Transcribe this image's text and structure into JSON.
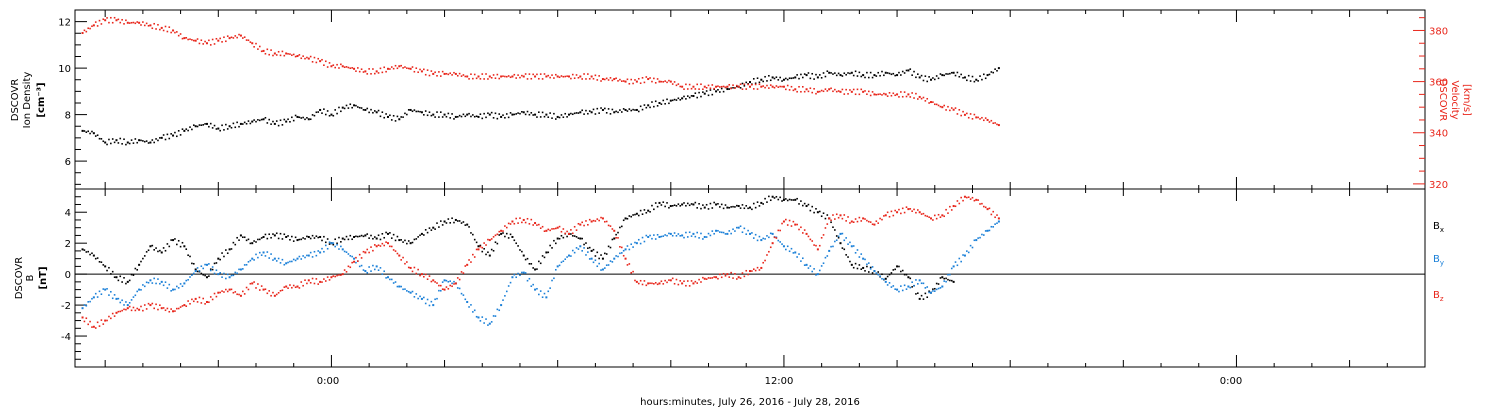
{
  "figure": {
    "xlabel": "hours:minutes, July 26, 2016 - July 28, 2016",
    "x_tick_labels": [
      "0:00",
      "12:00",
      "0:00"
    ]
  },
  "colors": {
    "black": "#000000",
    "red": "#e8261b",
    "blue": "#1b80d8",
    "zero_line": "#000000"
  },
  "chart_data": [
    {
      "type": "scatter",
      "panel": "density_velocity",
      "x_units": "hours since 2016-07-26 00:00",
      "xlim": [
        -6.8,
        29.0
      ],
      "ylim": [
        4.8,
        12.5
      ],
      "y2lim": [
        318,
        388
      ],
      "grid": false,
      "ylabel": [
        "DSCOVR",
        "Ion Density",
        "[cm⁻³]"
      ],
      "y_ticks": [
        6,
        8,
        10,
        12
      ],
      "y2label": [
        "DSCOVR",
        "Velocity",
        "[km/s]"
      ],
      "y2_ticks": [
        320,
        340,
        360,
        380
      ],
      "series": [
        {
          "color": "#000000",
          "axis": "left",
          "x": [
            -6.6,
            -6.3,
            -6.0,
            -5.7,
            -5.4,
            -5.1,
            -4.8,
            -4.5,
            -4.2,
            -3.9,
            -3.6,
            -3.3,
            -3.0,
            -2.7,
            -2.4,
            -2.1,
            -1.8,
            -1.5,
            -1.2,
            -0.9,
            -0.6,
            -0.3,
            0.0,
            0.3,
            0.6,
            0.9,
            1.2,
            1.5,
            1.8,
            2.1,
            2.4,
            2.7,
            3.0,
            3.3,
            3.6,
            3.9,
            4.2,
            4.5,
            4.8,
            5.1,
            5.4,
            5.7,
            6.0,
            6.3,
            6.6,
            6.9,
            7.2,
            7.5,
            7.8,
            8.1,
            8.4,
            8.7,
            9.0,
            9.3,
            9.6,
            9.9,
            10.2,
            10.5,
            10.8,
            11.1,
            11.4,
            11.7,
            12.0,
            12.3,
            12.6,
            12.9,
            13.2,
            13.5,
            13.8,
            14.1,
            14.4,
            14.7,
            15.0,
            15.3,
            15.6,
            15.9,
            16.2,
            16.5,
            16.8,
            17.1,
            17.4,
            17.7
          ],
          "y": [
            7.3,
            7.2,
            6.8,
            6.9,
            6.8,
            6.9,
            6.8,
            7.0,
            7.1,
            7.3,
            7.5,
            7.6,
            7.4,
            7.5,
            7.6,
            7.7,
            7.8,
            7.6,
            7.7,
            7.9,
            7.8,
            8.2,
            8.0,
            8.3,
            8.4,
            8.2,
            8.1,
            7.9,
            7.8,
            8.2,
            8.1,
            8.0,
            8.0,
            7.9,
            8.0,
            7.9,
            8.0,
            7.9,
            8.0,
            8.1,
            8.0,
            8.0,
            7.9,
            8.0,
            8.1,
            8.1,
            8.2,
            8.1,
            8.2,
            8.2,
            8.4,
            8.5,
            8.6,
            8.7,
            8.8,
            8.9,
            9.0,
            9.1,
            9.2,
            9.4,
            9.5,
            9.6,
            9.5,
            9.6,
            9.7,
            9.6,
            9.8,
            9.7,
            9.8,
            9.7,
            9.7,
            9.8,
            9.7,
            9.9,
            9.6,
            9.5,
            9.7,
            9.8,
            9.6,
            9.5,
            9.7,
            10.0
          ]
        },
        {
          "color": "#e8261b",
          "axis": "right",
          "x": [
            -6.6,
            -6.3,
            -6.0,
            -5.7,
            -5.4,
            -5.1,
            -4.8,
            -4.5,
            -4.2,
            -3.9,
            -3.6,
            -3.3,
            -3.0,
            -2.7,
            -2.4,
            -2.1,
            -1.8,
            -1.5,
            -1.2,
            -0.9,
            -0.6,
            -0.3,
            0.0,
            0.3,
            0.6,
            0.9,
            1.2,
            1.5,
            1.8,
            2.1,
            2.4,
            2.7,
            3.0,
            3.3,
            3.6,
            3.9,
            4.2,
            4.5,
            4.8,
            5.1,
            5.4,
            5.7,
            6.0,
            6.3,
            6.6,
            6.9,
            7.2,
            7.5,
            7.8,
            8.1,
            8.4,
            8.7,
            9.0,
            9.3,
            9.6,
            9.9,
            10.2,
            10.5,
            10.8,
            11.1,
            11.4,
            11.7,
            12.0,
            12.3,
            12.6,
            12.9,
            13.2,
            13.5,
            13.8,
            14.1,
            14.4,
            14.7,
            15.0,
            15.3,
            15.6,
            15.9,
            16.2,
            16.5,
            16.8,
            17.1,
            17.4,
            17.7
          ],
          "y": [
            379,
            382,
            384,
            384,
            383,
            383,
            382,
            381,
            380,
            377,
            376,
            375,
            376,
            377,
            378,
            375,
            372,
            371,
            371,
            370,
            369,
            368,
            366,
            366,
            365,
            364,
            364,
            365,
            366,
            365,
            364,
            363,
            363,
            363,
            362,
            362,
            362,
            362,
            362,
            362,
            362,
            362,
            362,
            362,
            362,
            362,
            361,
            361,
            360,
            360,
            361,
            360,
            360,
            358,
            358,
            358,
            358,
            358,
            358,
            358,
            358,
            358,
            358,
            357,
            357,
            356,
            357,
            356,
            356,
            356,
            355,
            355,
            355,
            355,
            354,
            352,
            350,
            349,
            347,
            346,
            345,
            343
          ]
        }
      ]
    },
    {
      "type": "scatter",
      "panel": "magnetic_field",
      "x_units": "hours since 2016-07-26 00:00",
      "xlim": [
        -6.8,
        29.0
      ],
      "ylim": [
        -6.0,
        5.5
      ],
      "grid": false,
      "zero_line": true,
      "ylabel": [
        "DSCOVR",
        "B",
        "[nT]"
      ],
      "y_ticks": [
        -4,
        -2,
        0,
        2,
        4
      ],
      "legend_position": "right",
      "series": [
        {
          "name": "Bx",
          "color": "#000000",
          "x": [
            -6.6,
            -6.3,
            -6.0,
            -5.7,
            -5.4,
            -5.1,
            -4.8,
            -4.5,
            -4.2,
            -3.9,
            -3.6,
            -3.3,
            -3.0,
            -2.7,
            -2.4,
            -2.1,
            -1.8,
            -1.5,
            -1.2,
            -0.9,
            -0.6,
            -0.3,
            0.0,
            0.3,
            0.6,
            0.9,
            1.2,
            1.5,
            1.8,
            2.1,
            2.4,
            2.7,
            3.0,
            3.3,
            3.6,
            3.9,
            4.2,
            4.5,
            4.8,
            5.1,
            5.4,
            5.7,
            6.0,
            6.3,
            6.6,
            6.9,
            7.2,
            7.5,
            7.8,
            8.1,
            8.4,
            8.7,
            9.0,
            9.3,
            9.6,
            9.9,
            10.2,
            10.5,
            10.8,
            11.1,
            11.4,
            11.7,
            12.0,
            12.3,
            12.6,
            12.9,
            13.2,
            13.5,
            13.8,
            14.1,
            14.4,
            14.7,
            15.0,
            15.3,
            15.6,
            15.9,
            16.2,
            16.5
          ],
          "y": [
            1.6,
            1.2,
            0.5,
            -0.2,
            -0.5,
            0.6,
            1.8,
            1.4,
            2.2,
            1.8,
            0.3,
            -0.2,
            1.0,
            1.6,
            2.5,
            2.0,
            2.4,
            2.5,
            2.4,
            2.2,
            2.4,
            2.4,
            2.0,
            2.3,
            2.4,
            2.5,
            2.3,
            2.6,
            2.2,
            2.0,
            2.6,
            3.0,
            3.4,
            3.5,
            3.2,
            1.8,
            1.2,
            2.6,
            2.4,
            1.2,
            0.3,
            1.4,
            2.3,
            2.6,
            2.3,
            1.5,
            1.0,
            2.3,
            3.6,
            3.9,
            4.1,
            4.6,
            4.4,
            4.5,
            4.5,
            4.3,
            4.5,
            4.3,
            4.4,
            4.3,
            4.6,
            5.0,
            4.8,
            4.8,
            4.4,
            4.0,
            3.6,
            2.0,
            0.6,
            0.4,
            0.2,
            -0.3,
            0.5,
            -0.2,
            -1.6,
            -1.2,
            -0.2,
            -0.5
          ]
        },
        {
          "name": "By",
          "color": "#1b80d8",
          "x": [
            -6.6,
            -6.3,
            -6.0,
            -5.7,
            -5.4,
            -5.1,
            -4.8,
            -4.5,
            -4.2,
            -3.9,
            -3.6,
            -3.3,
            -3.0,
            -2.7,
            -2.4,
            -2.1,
            -1.8,
            -1.5,
            -1.2,
            -0.9,
            -0.6,
            -0.3,
            0.0,
            0.3,
            0.6,
            0.9,
            1.2,
            1.5,
            1.8,
            2.1,
            2.4,
            2.7,
            3.0,
            3.3,
            3.6,
            3.9,
            4.2,
            4.5,
            4.8,
            5.1,
            5.4,
            5.7,
            6.0,
            6.3,
            6.6,
            6.9,
            7.2,
            7.5,
            7.8,
            8.1,
            8.4,
            8.7,
            9.0,
            9.3,
            9.6,
            9.9,
            10.2,
            10.5,
            10.8,
            11.1,
            11.4,
            11.7,
            12.0,
            12.3,
            12.6,
            12.9,
            13.2,
            13.5,
            13.8,
            14.1,
            14.4,
            14.7,
            15.0,
            15.3,
            15.6,
            15.9,
            16.2,
            16.5,
            16.8,
            17.1,
            17.4,
            17.7
          ],
          "y": [
            -2.2,
            -1.5,
            -1.0,
            -1.6,
            -2.0,
            -1.0,
            -0.4,
            -0.5,
            -1.0,
            -0.6,
            0.2,
            0.6,
            0.0,
            -0.2,
            0.3,
            1.0,
            1.4,
            1.0,
            0.7,
            1.0,
            1.2,
            1.4,
            2.0,
            1.6,
            1.0,
            0.2,
            0.5,
            -0.2,
            -0.8,
            -1.2,
            -1.6,
            -2.0,
            -0.4,
            -0.6,
            -1.8,
            -2.8,
            -3.2,
            -2.0,
            -0.2,
            0.1,
            -1.0,
            -1.5,
            0.5,
            1.2,
            1.8,
            1.0,
            0.3,
            1.0,
            1.6,
            2.0,
            2.4,
            2.4,
            2.6,
            2.5,
            2.6,
            2.4,
            2.8,
            2.6,
            3.0,
            2.6,
            2.2,
            2.6,
            1.8,
            1.4,
            0.6,
            0.0,
            1.5,
            2.6,
            1.8,
            1.0,
            0.2,
            -0.5,
            -1.0,
            -0.8,
            -0.4,
            -1.2,
            -0.8,
            0.5,
            1.2,
            2.2,
            2.8,
            3.4
          ]
        },
        {
          "name": "Bz",
          "color": "#e8261b",
          "x": [
            -6.6,
            -6.3,
            -6.0,
            -5.7,
            -5.4,
            -5.1,
            -4.8,
            -4.5,
            -4.2,
            -3.9,
            -3.6,
            -3.3,
            -3.0,
            -2.7,
            -2.4,
            -2.1,
            -1.8,
            -1.5,
            -1.2,
            -0.9,
            -0.6,
            -0.3,
            0.0,
            0.3,
            0.6,
            0.9,
            1.2,
            1.5,
            1.8,
            2.1,
            2.4,
            2.7,
            3.0,
            3.3,
            3.6,
            3.9,
            4.2,
            4.5,
            4.8,
            5.1,
            5.4,
            5.7,
            6.0,
            6.3,
            6.6,
            6.9,
            7.2,
            7.5,
            7.8,
            8.1,
            8.4,
            8.7,
            9.0,
            9.3,
            9.6,
            9.9,
            10.2,
            10.5,
            10.8,
            11.1,
            11.4,
            11.7,
            12.0,
            12.3,
            12.6,
            12.9,
            13.2,
            13.5,
            13.8,
            14.1,
            14.4,
            14.7,
            15.0,
            15.3,
            15.6,
            15.9,
            16.2,
            16.5,
            16.8,
            17.1,
            17.4,
            17.7
          ],
          "y": [
            -2.8,
            -3.4,
            -3.0,
            -2.5,
            -2.2,
            -2.3,
            -2.0,
            -2.2,
            -2.4,
            -2.0,
            -1.6,
            -1.8,
            -1.2,
            -1.0,
            -1.4,
            -0.6,
            -1.0,
            -1.4,
            -0.8,
            -0.8,
            -0.4,
            -0.5,
            -0.2,
            0.0,
            0.8,
            1.4,
            1.8,
            2.0,
            1.2,
            0.4,
            0.0,
            -0.4,
            -1.0,
            -0.6,
            0.6,
            1.6,
            2.2,
            2.8,
            3.4,
            3.5,
            3.3,
            2.8,
            3.0,
            2.6,
            3.2,
            3.4,
            3.6,
            2.8,
            1.0,
            -0.5,
            -0.6,
            -0.6,
            -0.4,
            -0.6,
            -0.6,
            -0.3,
            -0.2,
            0.0,
            -0.2,
            0.2,
            0.4,
            2.0,
            3.4,
            3.2,
            2.6,
            1.6,
            3.6,
            3.8,
            3.4,
            3.6,
            3.2,
            3.8,
            4.0,
            4.2,
            4.0,
            3.6,
            3.8,
            4.4,
            5.0,
            4.8,
            4.2,
            3.6
          ]
        }
      ]
    }
  ]
}
